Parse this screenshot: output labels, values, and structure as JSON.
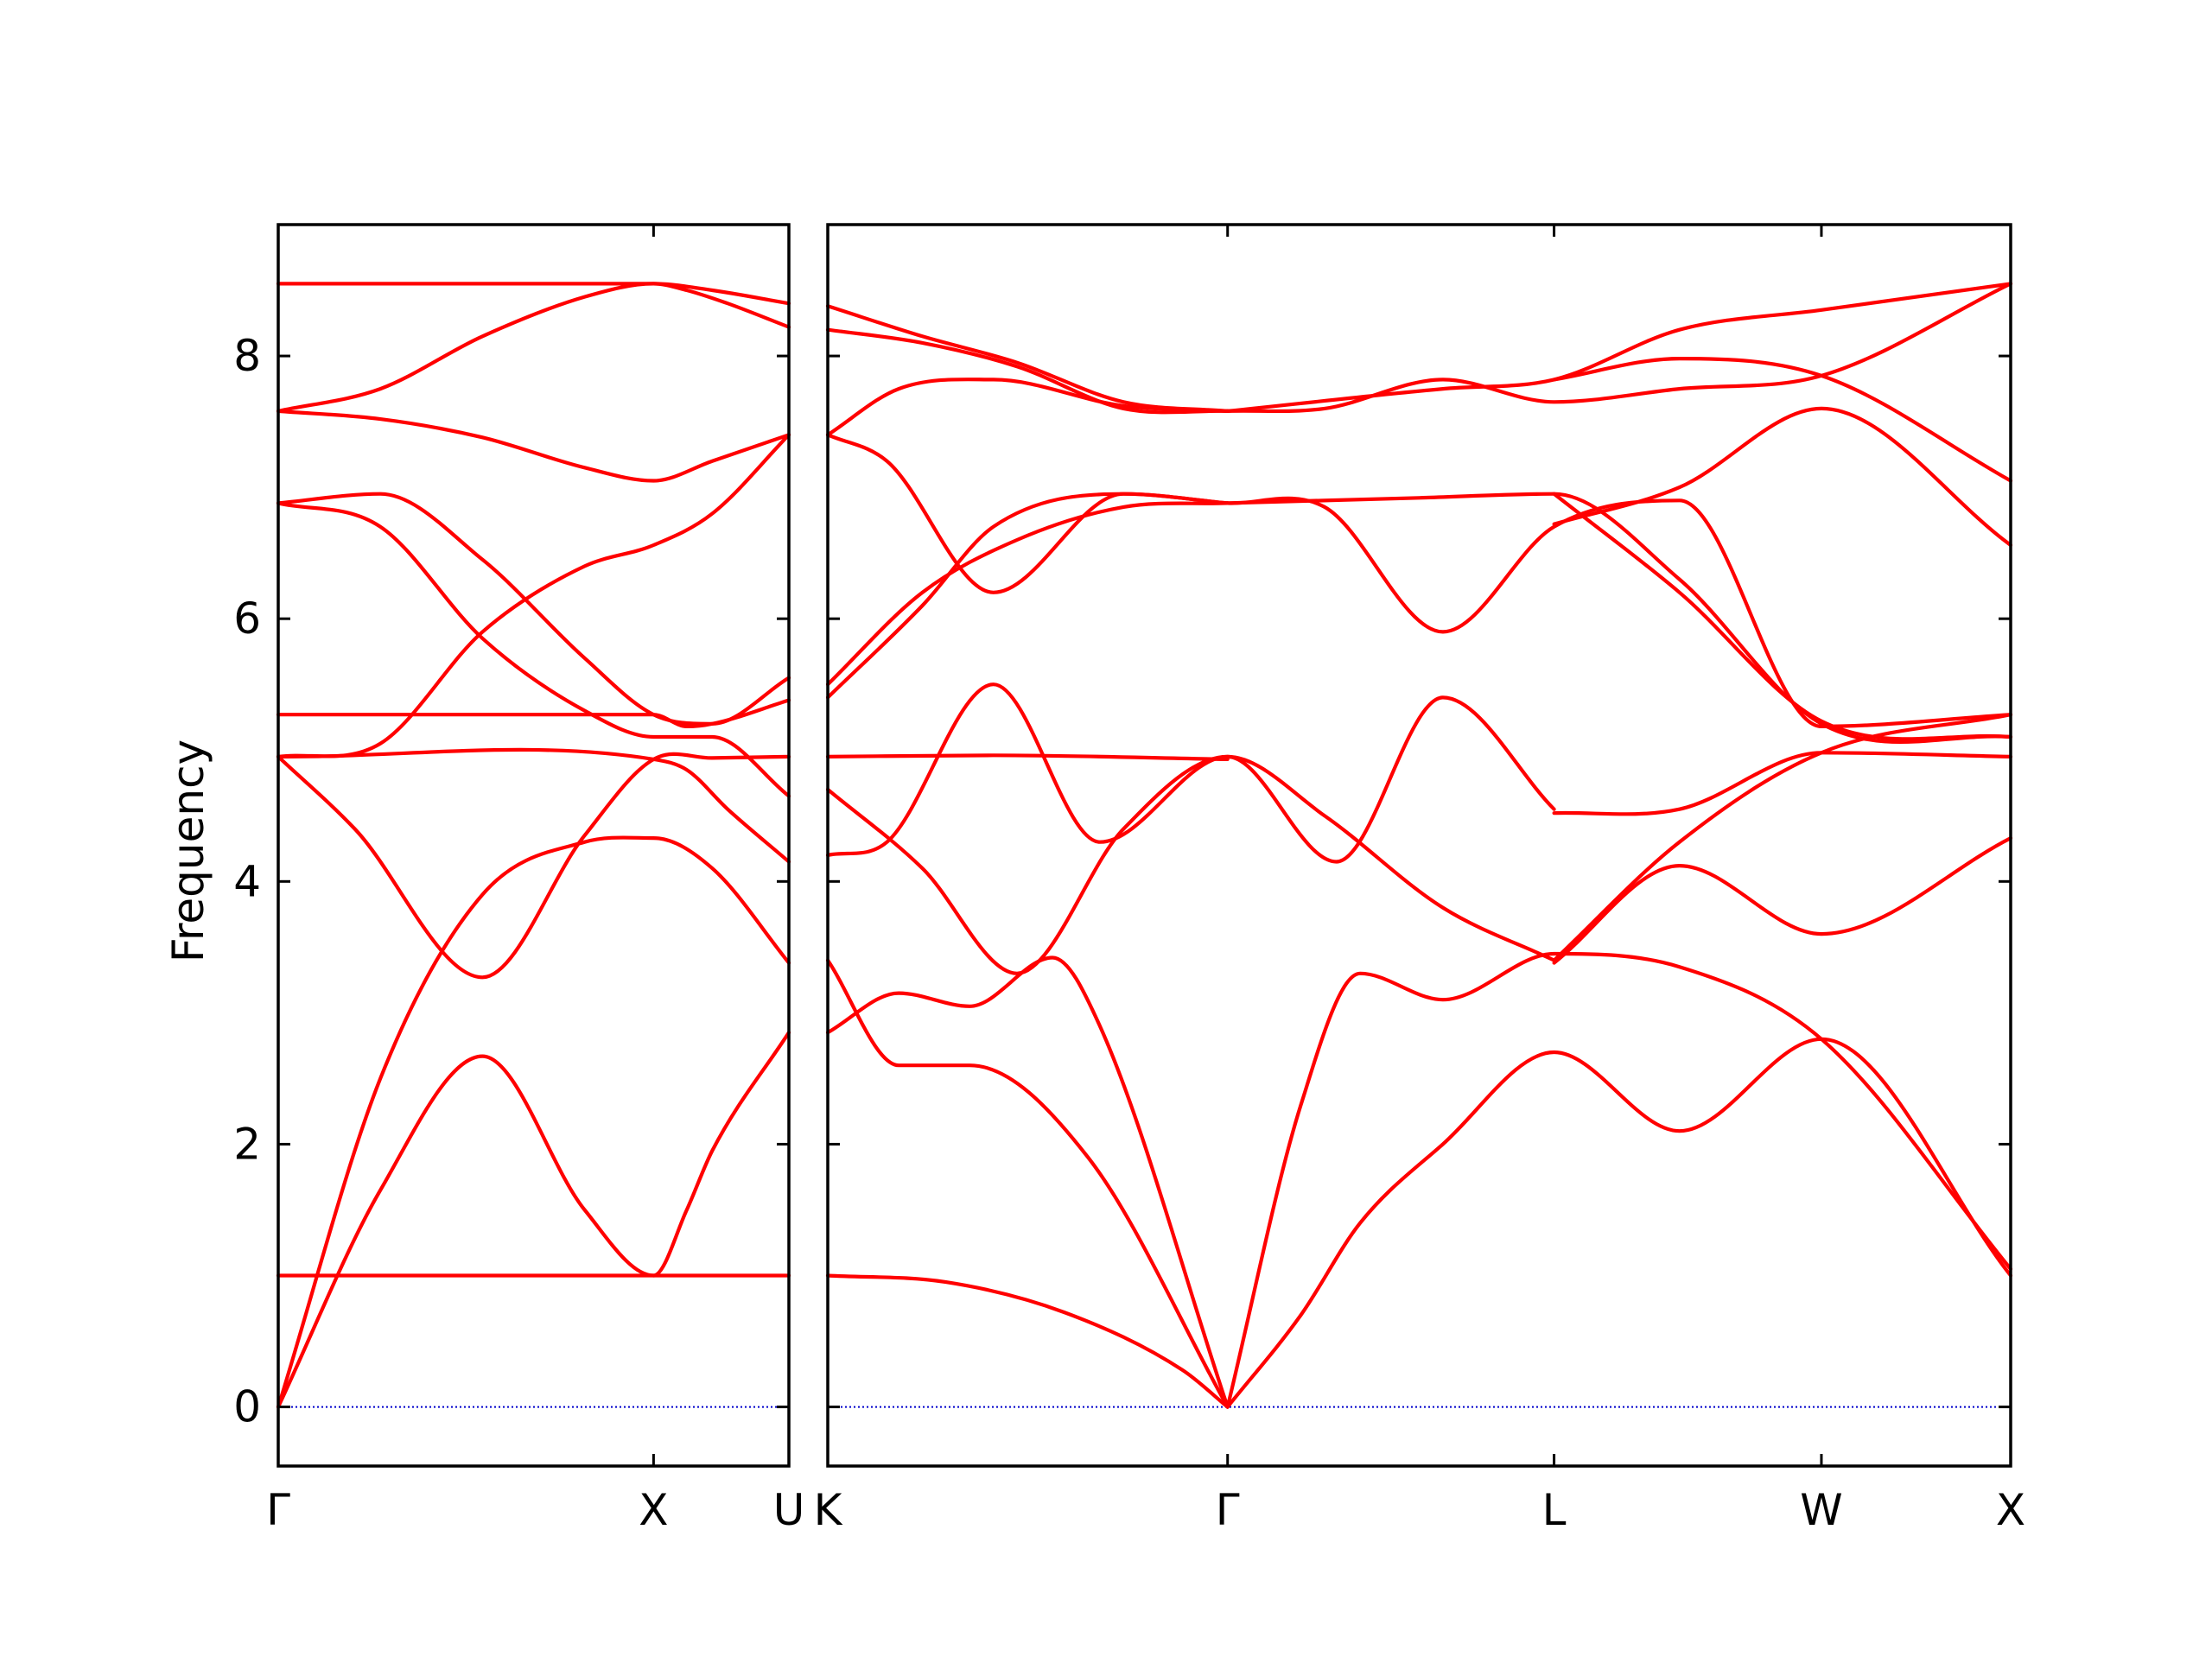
{
  "chart_data": {
    "type": "line",
    "title": "",
    "ylabel": "Frequency",
    "xlabel": "",
    "ylim": [
      -0.45,
      9.0
    ],
    "yticks": [
      0,
      2,
      4,
      6,
      8
    ],
    "grid": false,
    "legend": "none",
    "colors": {
      "bands": "#ff0000",
      "zero_line": "#0000cc",
      "axes": "#000000"
    },
    "panels": [
      {
        "name": "panel-1",
        "xlim": [
          0,
          1
        ],
        "high_symmetry_points": [
          {
            "label": "Γ",
            "x": 0.0
          },
          {
            "label": "X",
            "x": 0.735
          },
          {
            "label": "U",
            "x": 1.0
          }
        ],
        "bands": [
          {
            "x": [
              0,
              0.2,
              0.4,
              0.6,
              0.735,
              0.85,
              1.0
            ],
            "y": [
              0,
              1.65,
              2.67,
              1.5,
              1.0,
              1.0,
              1.0
            ]
          },
          {
            "x": [
              0,
              0.2,
              0.4,
              0.6,
              0.735,
              0.85,
              1.0
            ],
            "y": [
              0,
              2.5,
              3.9,
              4.3,
              4.33,
              4.1,
              3.38
            ]
          },
          {
            "x": [
              0,
              0.15,
              0.4,
              0.6,
              0.735,
              0.85,
              1.0
            ],
            "y": [
              4.95,
              4.4,
              3.27,
              4.35,
              4.93,
              4.94,
              4.95
            ]
          },
          {
            "x": [
              0,
              0.2,
              0.4,
              0.6,
              0.735,
              0.85,
              1.0
            ],
            "y": [
              4.95,
              5.05,
              5.9,
              6.4,
              6.56,
              6.8,
              7.4
            ]
          },
          {
            "x": [
              0,
              0.2,
              0.4,
              0.6,
              0.735,
              0.85,
              1.0
            ],
            "y": [
              6.88,
              6.7,
              5.85,
              5.3,
              5.1,
              5.1,
              4.65
            ]
          },
          {
            "x": [
              0,
              0.2,
              0.4,
              0.6,
              0.735,
              0.85,
              1.0
            ],
            "y": [
              6.88,
              6.95,
              6.45,
              5.7,
              5.27,
              5.2,
              5.55
            ]
          },
          {
            "x": [
              0,
              0.2,
              0.4,
              0.6,
              0.735,
              0.85,
              1.0
            ],
            "y": [
              7.58,
              7.52,
              7.38,
              7.15,
              7.05,
              7.2,
              7.4
            ]
          },
          {
            "x": [
              0,
              0.2,
              0.4,
              0.6,
              0.735,
              0.85,
              1.0
            ],
            "y": [
              7.58,
              7.75,
              8.15,
              8.45,
              8.55,
              8.5,
              8.4
            ]
          },
          {
            "x": [
              0,
              0.735,
              0.8,
              0.88,
              1.0
            ],
            "y": [
              4.95,
              4.93,
              4.85,
              4.55,
              4.15
            ]
          },
          {
            "x": [
              0,
              0.735,
              0.8,
              0.88,
              1.0
            ],
            "y": [
              8.55,
              8.55,
              8.5,
              8.4,
              8.22
            ]
          },
          {
            "x": [
              0,
              0.735,
              0.8,
              0.85,
              1.0
            ],
            "y": [
              1.0,
              1.0,
              1.5,
              1.95,
              2.85
            ]
          },
          {
            "x": [
              0,
              0.735,
              0.8,
              0.85,
              1.0
            ],
            "y": [
              5.27,
              5.27,
              5.18,
              5.2,
              5.38
            ]
          }
        ]
      },
      {
        "name": "panel-2",
        "xlim": [
          0,
          1
        ],
        "high_symmetry_points": [
          {
            "label": "K",
            "x": 0.0
          },
          {
            "label": "Γ",
            "x": 0.338
          },
          {
            "label": "L",
            "x": 0.614
          },
          {
            "label": "W",
            "x": 0.84
          },
          {
            "label": "X",
            "x": 1.0
          }
        ],
        "bands": [
          {
            "x": [
              0,
              0.1,
              0.2,
              0.3,
              0.338
            ],
            "y": [
              1.0,
              0.95,
              0.72,
              0.28,
              0.0
            ]
          },
          {
            "x": [
              0,
              0.06,
              0.12,
              0.22,
              0.338
            ],
            "y": [
              3.4,
              2.6,
              2.6,
              1.9,
              0.0
            ]
          },
          {
            "x": [
              0,
              0.06,
              0.12,
              0.19,
              0.23,
              0.338
            ],
            "y": [
              2.85,
              3.15,
              3.05,
              3.42,
              2.9,
              0.0
            ]
          },
          {
            "x": [
              0.338,
              0.4,
              0.45,
              0.52,
              0.614,
              0.72,
              0.84,
              1.0
            ],
            "y": [
              0.0,
              0.7,
              1.4,
              2.0,
              2.7,
              2.1,
              2.8,
              1.0
            ]
          },
          {
            "x": [
              0.338,
              0.4,
              0.45,
              0.52,
              0.614,
              0.72,
              0.84,
              1.0
            ],
            "y": [
              0.0,
              2.3,
              3.3,
              3.1,
              3.45,
              3.35,
              2.8,
              1.05
            ]
          },
          {
            "x": [
              0,
              0.08,
              0.16,
              0.25,
              0.338,
              0.42,
              0.52,
              0.614
            ],
            "y": [
              4.7,
              4.1,
              3.3,
              4.4,
              4.95,
              4.5,
              3.8,
              3.4
            ]
          },
          {
            "x": [
              0,
              0.05,
              0.14,
              0.23,
              0.338,
              0.43,
              0.52,
              0.614
            ],
            "y": [
              4.2,
              4.3,
              5.5,
              4.3,
              4.95,
              4.15,
              5.4,
              4.55
            ]
          },
          {
            "x": [
              0,
              0.14,
              0.338
            ],
            "y": [
              4.95,
              4.96,
              4.93
            ]
          },
          {
            "x": [
              0.614,
              0.72,
              0.84,
              1.0
            ],
            "y": [
              4.52,
              4.55,
              4.98,
              4.95
            ]
          },
          {
            "x": [
              0.614,
              0.72,
              0.84,
              1.0
            ],
            "y": [
              3.38,
              4.12,
              3.6,
              4.33
            ]
          },
          {
            "x": [
              0.614,
              0.72,
              0.84,
              1.0
            ],
            "y": [
              3.4,
              4.3,
              4.98,
              5.27
            ]
          },
          {
            "x": [
              0,
              0.08,
              0.16,
              0.25,
              0.338
            ],
            "y": [
              5.5,
              6.2,
              6.6,
              6.85,
              6.88
            ]
          },
          {
            "x": [
              0,
              0.08,
              0.14,
              0.25,
              0.338
            ],
            "y": [
              5.4,
              6.1,
              6.7,
              6.95,
              6.88
            ]
          },
          {
            "x": [
              0,
              0.05,
              0.14,
              0.25,
              0.338
            ],
            "y": [
              7.4,
              7.2,
              6.2,
              6.95,
              6.88
            ]
          },
          {
            "x": [
              0.338,
              0.5,
              0.614,
              0.72,
              0.84,
              1.0
            ],
            "y": [
              6.88,
              6.92,
              6.95,
              6.3,
              5.2,
              5.1
            ]
          },
          {
            "x": [
              0.338,
              0.42,
              0.52,
              0.614,
              0.72,
              0.84,
              1.0
            ],
            "y": [
              6.88,
              6.85,
              5.9,
              6.7,
              6.9,
              5.18,
              5.27
            ]
          },
          {
            "x": [
              0.614,
              0.72,
              0.84,
              1.0
            ],
            "y": [
              6.95,
              6.2,
              5.22,
              5.1
            ]
          },
          {
            "x": [
              0,
              0.06,
              0.14,
              0.25,
              0.338
            ],
            "y": [
              7.4,
              7.75,
              7.82,
              7.62,
              7.58
            ]
          },
          {
            "x": [
              0,
              0.08,
              0.16,
              0.25,
              0.338
            ],
            "y": [
              8.2,
              8.1,
              7.92,
              7.6,
              7.58
            ]
          },
          {
            "x": [
              0,
              0.08,
              0.16,
              0.25,
              0.338
            ],
            "y": [
              8.38,
              8.15,
              7.95,
              7.65,
              7.58
            ]
          },
          {
            "x": [
              0.338,
              0.52,
              0.614,
              0.72,
              0.84,
              1.0
            ],
            "y": [
              7.58,
              7.75,
              7.82,
              8.2,
              8.35,
              8.55
            ]
          },
          {
            "x": [
              0.338,
              0.42,
              0.52,
              0.614,
              0.72,
              0.84,
              1.0
            ],
            "y": [
              7.58,
              7.6,
              7.82,
              7.65,
              7.75,
              7.85,
              8.55
            ]
          },
          {
            "x": [
              0.614,
              0.72,
              0.84,
              1.0
            ],
            "y": [
              7.82,
              7.98,
              7.85,
              7.05
            ]
          },
          {
            "x": [
              0.614,
              0.72,
              0.84,
              1.0
            ],
            "y": [
              6.72,
              7.0,
              7.6,
              6.56
            ]
          }
        ]
      }
    ]
  }
}
